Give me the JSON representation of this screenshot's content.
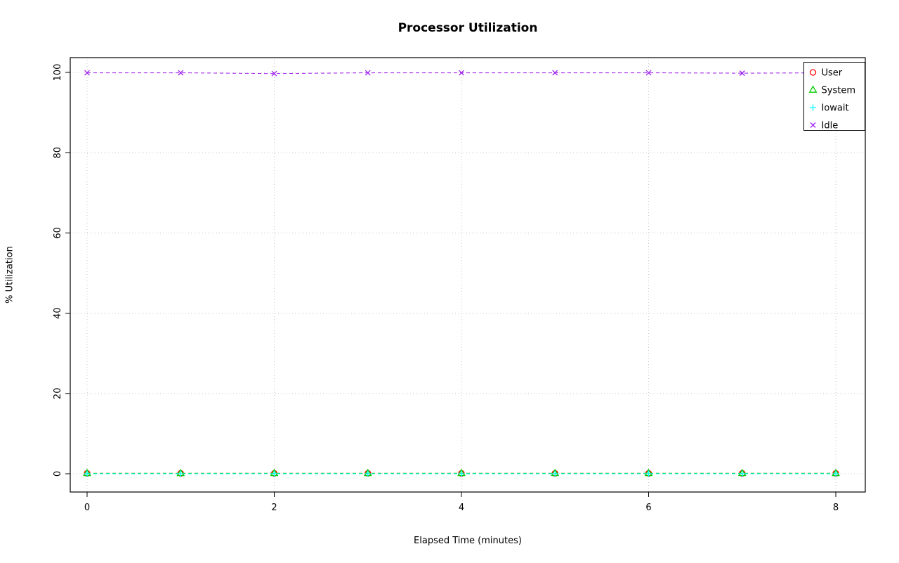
{
  "chart_data": {
    "type": "line",
    "title": "Processor Utilization",
    "xlabel": "Elapsed Time (minutes)",
    "ylabel": "% Utilization",
    "x": [
      0,
      1,
      2,
      3,
      4,
      5,
      6,
      7,
      8
    ],
    "xlim": [
      0,
      8
    ],
    "ylim": [
      0,
      100
    ],
    "xticks": [
      0,
      2,
      4,
      6,
      8
    ],
    "yticks": [
      0,
      20,
      40,
      60,
      80,
      100
    ],
    "grid": true,
    "grid_style": "dotted",
    "line_style": "dashed",
    "legend_position": "top-right",
    "legend_labels": [
      "User",
      "System",
      "Iowait",
      "Idle"
    ],
    "colors": {
      "user": "#ff0000",
      "system": "#00cd00",
      "iowait": "#00ffff",
      "idle": "#a020f0",
      "grid": "#c8c8c8"
    },
    "series": [
      {
        "name": "User",
        "color": "#ff0000",
        "marker": "circle",
        "values": [
          0.1,
          0.1,
          0.1,
          0.1,
          0.1,
          0.1,
          0.1,
          0.1,
          0.1
        ]
      },
      {
        "name": "System",
        "color": "#00cd00",
        "marker": "triangle",
        "values": [
          0.1,
          0.1,
          0.1,
          0.1,
          0.1,
          0.1,
          0.1,
          0.1,
          0.1
        ]
      },
      {
        "name": "Iowait",
        "color": "#00ffff",
        "marker": "plus",
        "values": [
          0.0,
          0.0,
          0.0,
          0.0,
          0.0,
          0.0,
          0.0,
          0.0,
          0.0
        ]
      },
      {
        "name": "Idle",
        "color": "#a020f0",
        "marker": "x",
        "values": [
          99.9,
          99.9,
          99.7,
          99.9,
          99.9,
          99.9,
          99.9,
          99.8,
          99.9
        ]
      }
    ]
  }
}
